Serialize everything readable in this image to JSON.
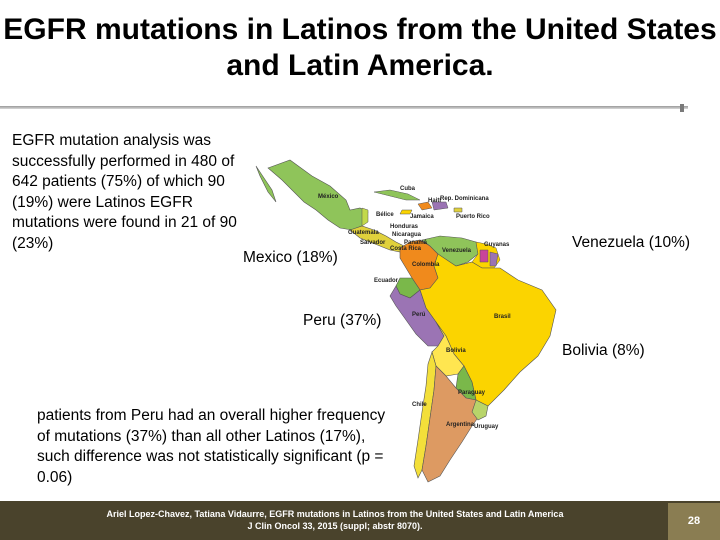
{
  "title": "EGFR mutations in Latinos from the United States and Latin America.",
  "intro": "EGFR mutation analysis was successfully performed in 480 of 642 patients (75%) of which 90 (19%) were Latinos EGFR mutations were found in 21 of 90 (23%)",
  "labels": {
    "mexico": "Mexico (18%)",
    "venezuela": "Venezuela (10%)",
    "peru": "Peru (37%)",
    "bolivia": "Bolivia (8%)"
  },
  "map_labels": {
    "mexico": "México",
    "cuba": "Cuba",
    "haiti": "Haití",
    "dominicana": "Rep. Dominicana",
    "jamaica": "Jamaica",
    "puerto_rico": "Puerto Rico",
    "belice": "Bélice",
    "honduras": "Honduras",
    "guatemala": "Guatemala",
    "salvador": "Salvador",
    "nicaragua": "Nicaragua",
    "costa_rica": "Costa Rica",
    "panama": "Panamá",
    "venezuela": "Venezuela",
    "guyanas": "Guyanas",
    "colombia": "Colombia",
    "ecuador": "Ecuador",
    "peru": "Perú",
    "brasil": "Brasil",
    "bolivia": "Bolivia",
    "paraguay": "Paraguay",
    "argentina": "Argentina",
    "uruguay": "Uruguay",
    "chile": "Chile"
  },
  "note": "patients from Peru had an overall higher frequency of mutations (37%) than all other Latinos (17%), such difference was not statistically significant (p = 0.06)",
  "footer": {
    "line1": "Ariel Lopez-Chavez, Tatiana Vidaurre, EGFR mutations in Latinos from the United States and Latin America",
    "line2": "J Clin Oncol 33, 2015 (suppl; abstr 8070)."
  },
  "slide_number": "28",
  "colors": {
    "mexico": "#8fc45a",
    "central": "#e0d13c",
    "colombia": "#f08a1c",
    "venezuela": "#8fc45a",
    "ecuador": "#7ab84a",
    "peru": "#9b74b4",
    "brasil": "#fbd400",
    "bolivia": "#ffe650",
    "paraguay": "#7ab84a",
    "argentina": "#dd9a62",
    "uruguay": "#b8d46a",
    "chile": "#f3df3a",
    "footer": "#4a432c",
    "slide_number_box": "#8a7d52"
  }
}
